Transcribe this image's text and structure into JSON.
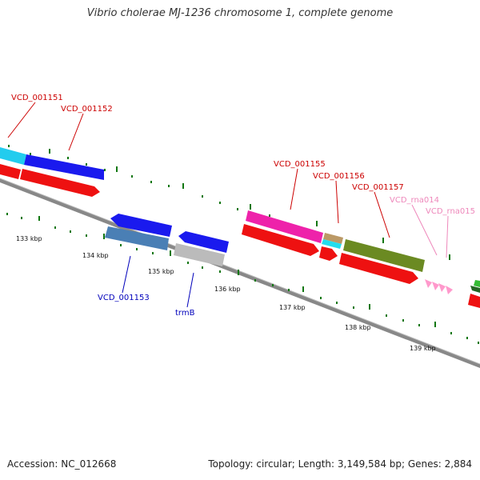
{
  "title": "Vibrio cholerae MJ-1236 chromosome 1, complete genome",
  "accession": "Accession: NC_012668",
  "topology": "Topology: circular; Length: 3,149,584 bp; Genes: 2,884",
  "colors": {
    "red_label": "#cc0000",
    "blue_label": "#0000bb",
    "pink_label": "#ee88bb",
    "tick": "#117711",
    "backbone": "#888888"
  },
  "scale_labels": {
    "k133": "133 kbp",
    "k134": "134 kbp",
    "k135": "135 kbp",
    "k136": "136 kbp",
    "k137": "137 kbp",
    "k138": "138 kbp",
    "k139": "139 kbp"
  },
  "gene_labels": {
    "g1151": "VCD_001151",
    "g1152": "VCD_001152",
    "g1153": "VCD_001153",
    "trmB": "trmB",
    "g1155": "VCD_001155",
    "g1156": "VCD_001156",
    "g1157": "VCD_001157",
    "rna014": "VCD_rna014",
    "rna015": "VCD_rna015"
  }
}
